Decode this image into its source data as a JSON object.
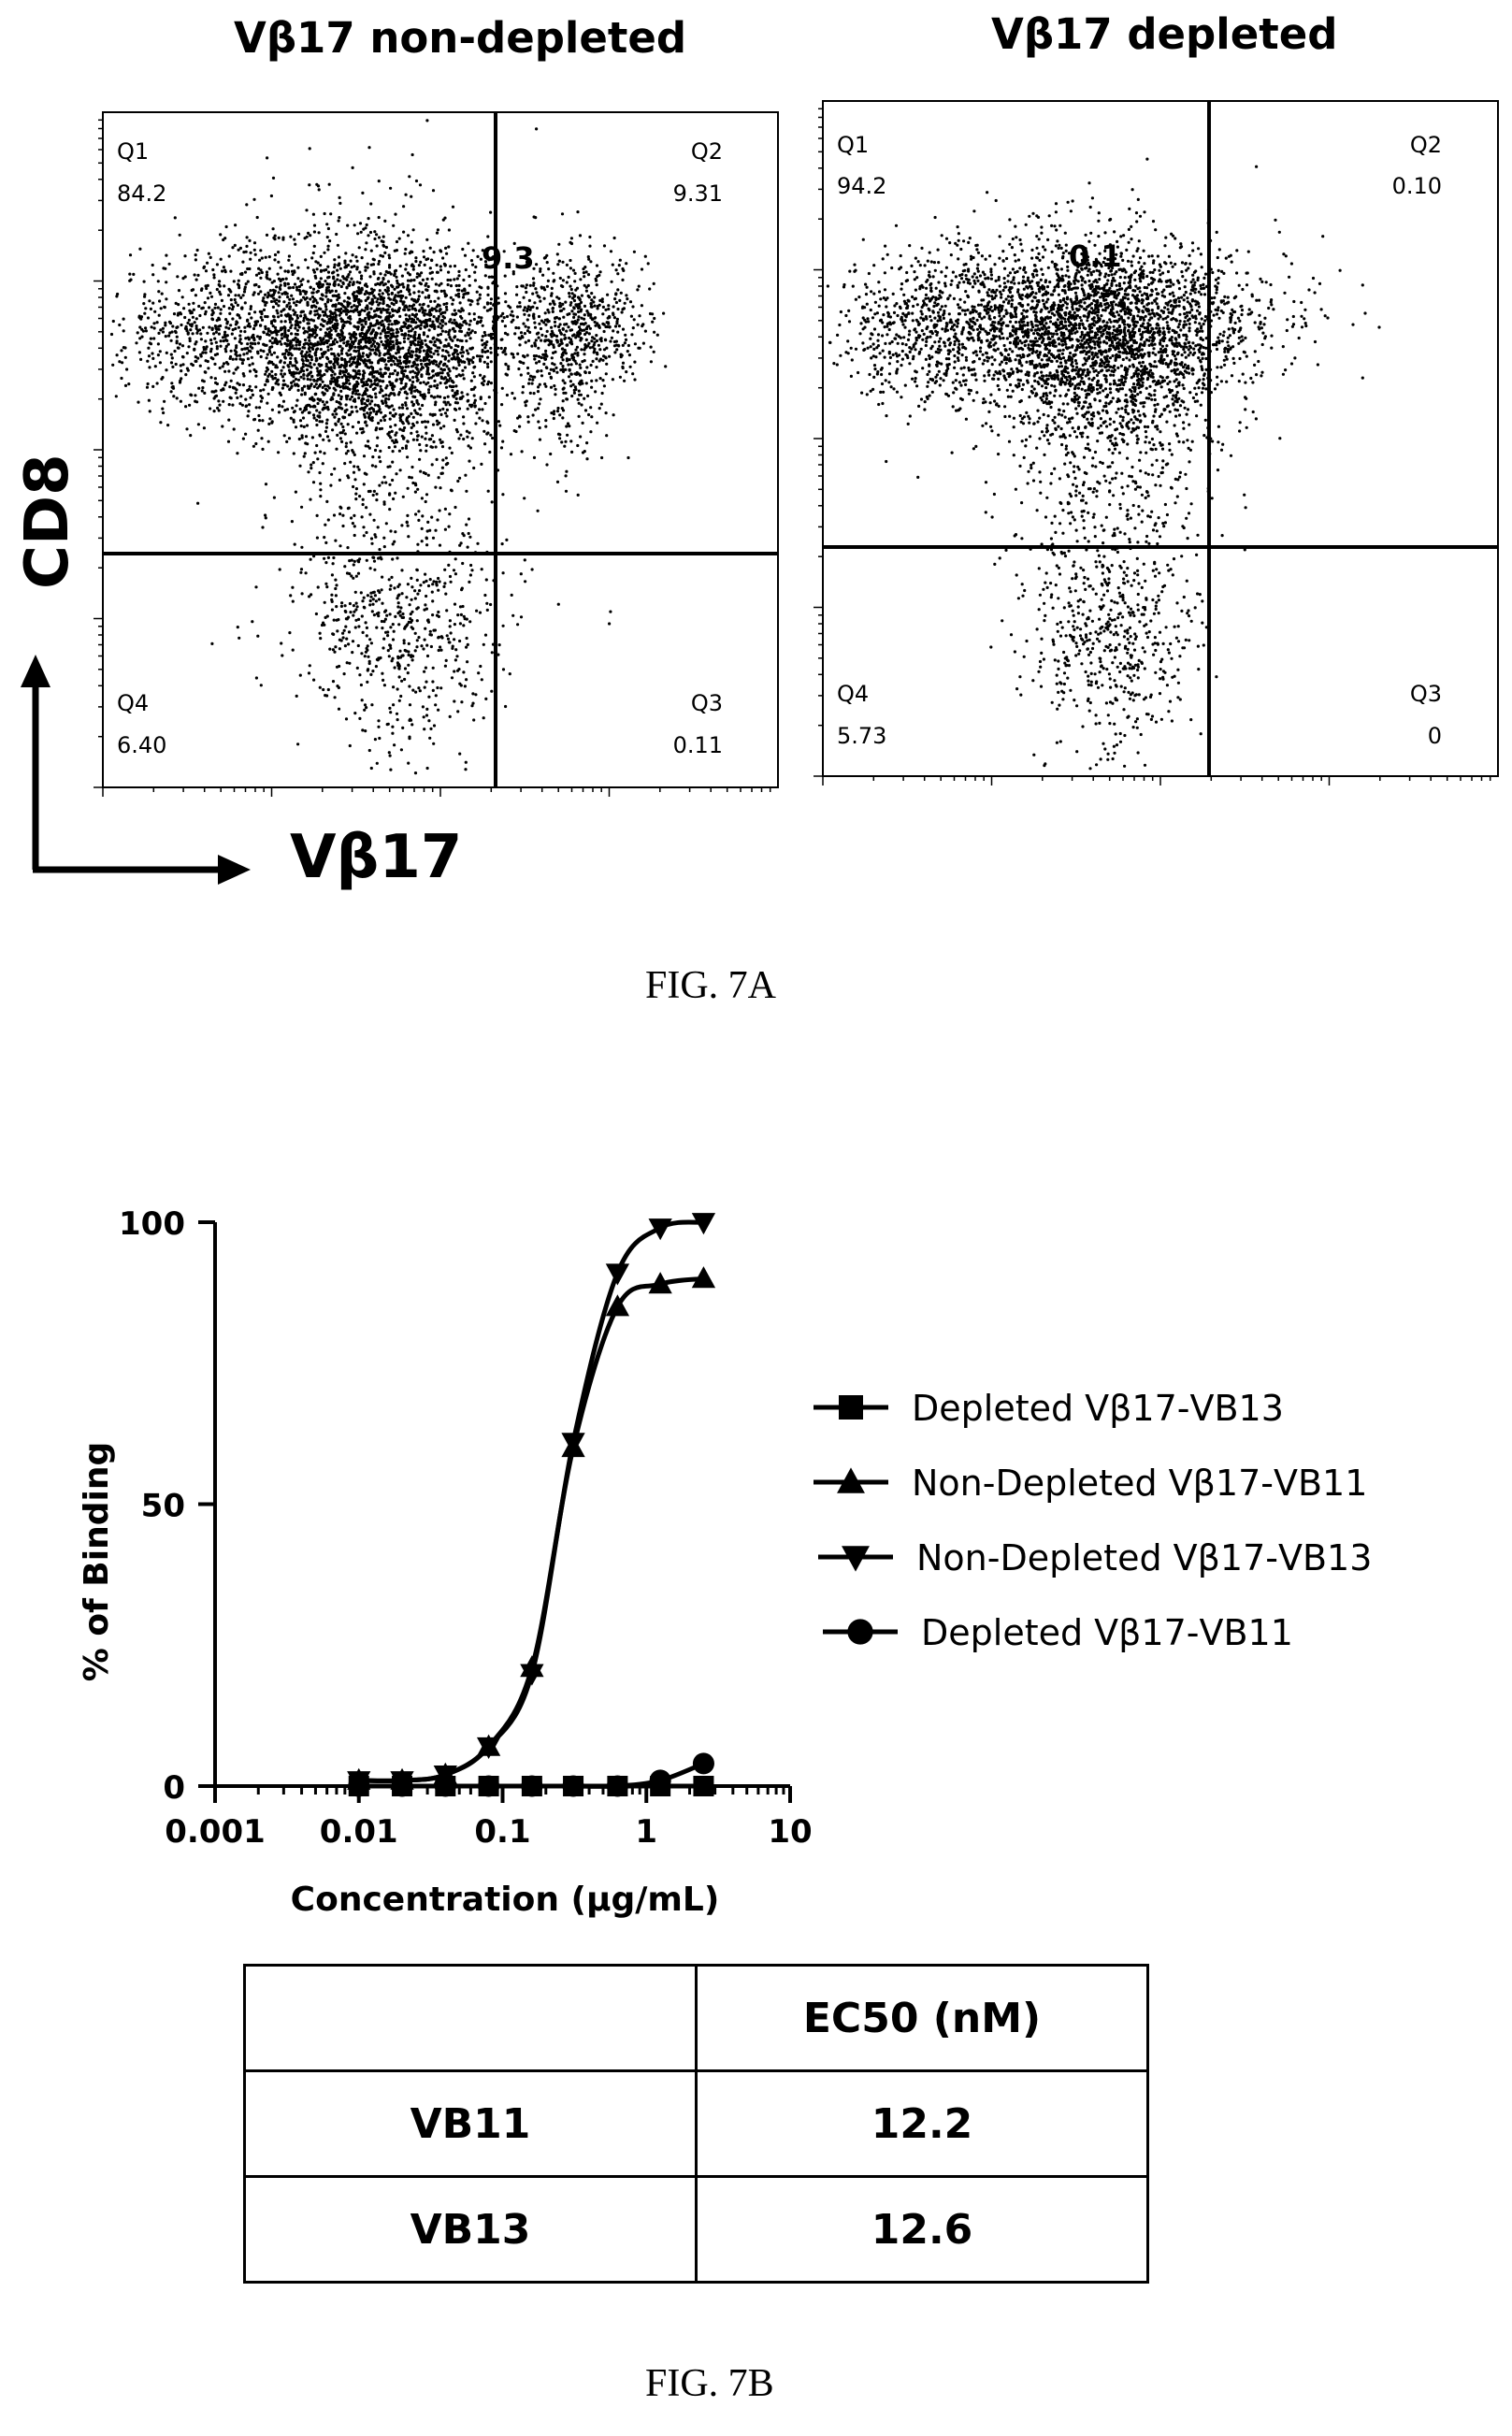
{
  "fig7a": {
    "axes": {
      "y": "CD8",
      "x": "Vβ17"
    },
    "panels": [
      {
        "title": "Vβ17 non-depleted",
        "q1": {
          "label": "Q1",
          "value": "84.2"
        },
        "q2": {
          "label": "Q2",
          "value": "9.31"
        },
        "q3": {
          "label": "Q3",
          "value": "0.11"
        },
        "q4": {
          "label": "Q4",
          "value": "6.40"
        },
        "annotation": "9.3"
      },
      {
        "title": "Vβ17 depleted",
        "q1": {
          "label": "Q1",
          "value": "94.2"
        },
        "q2": {
          "label": "Q2",
          "value": "0.10"
        },
        "q3": {
          "label": "Q3",
          "value": "0"
        },
        "q4": {
          "label": "Q4",
          "value": "5.73"
        },
        "annotation": "0.1"
      }
    ],
    "caption": "FIG. 7A"
  },
  "chart_data": {
    "type": "line",
    "xscale": "log",
    "xlabel": "Concentration (µg/mL)",
    "ylabel": "% of  Binding",
    "xlim": [
      0.001,
      10
    ],
    "ylim": [
      0,
      100
    ],
    "xticks": [
      "0.001",
      "0.01",
      "0.1",
      "1",
      "10"
    ],
    "yticks": [
      "0",
      "50",
      "100"
    ],
    "series": [
      {
        "name": "Depleted Vβ17-VB13",
        "marker": "square",
        "x": [
          0.01,
          0.02,
          0.04,
          0.08,
          0.16,
          0.31,
          0.63,
          1.25,
          2.5
        ],
        "y": [
          0,
          0,
          0,
          0,
          0,
          0,
          0,
          0,
          0
        ]
      },
      {
        "name": "Non-Depleted Vβ17-VB11",
        "marker": "triangle-up",
        "x": [
          0.01,
          0.02,
          0.04,
          0.08,
          0.16,
          0.31,
          0.63,
          1.25,
          2.5
        ],
        "y": [
          1,
          1,
          2,
          7,
          21,
          60,
          85,
          89,
          90
        ]
      },
      {
        "name": "Non-Depleted Vβ17-VB13",
        "marker": "triangle-down",
        "x": [
          0.01,
          0.02,
          0.04,
          0.08,
          0.16,
          0.31,
          0.63,
          1.25,
          2.5
        ],
        "y": [
          1,
          1,
          2,
          7,
          20,
          61,
          91,
          99,
          100
        ]
      },
      {
        "name": "Depleted Vβ17-VB11",
        "marker": "circle",
        "x": [
          0.01,
          0.02,
          0.04,
          0.08,
          0.16,
          0.31,
          0.63,
          1.25,
          2.5
        ],
        "y": [
          0,
          0,
          0,
          0,
          0,
          0,
          0,
          1,
          4
        ]
      }
    ]
  },
  "ec50_table": {
    "header": [
      "",
      "EC50 (nM)"
    ],
    "rows": [
      {
        "label": "VB11",
        "value": "12.2"
      },
      {
        "label": "VB13",
        "value": "12.6"
      }
    ]
  },
  "fig7b": {
    "caption": "FIG. 7B"
  }
}
